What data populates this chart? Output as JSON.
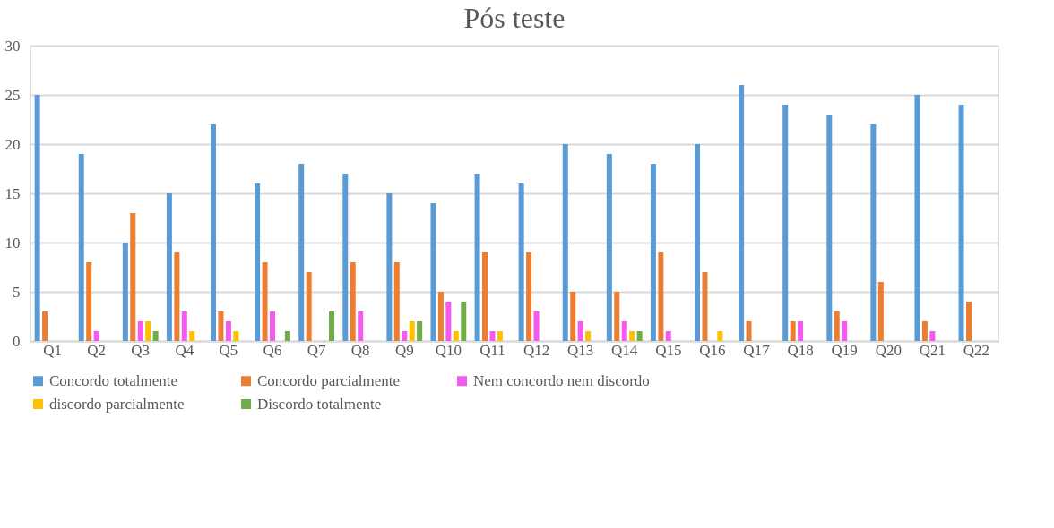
{
  "chart_data": {
    "type": "bar",
    "title": "Pós teste",
    "categories": [
      "Q1",
      "Q2",
      "Q3",
      "Q4",
      "Q5",
      "Q6",
      "Q7",
      "Q8",
      "Q9",
      "Q10",
      "Q11",
      "Q12",
      "Q13",
      "Q14",
      "Q15",
      "Q16",
      "Q17",
      "Q18",
      "Q19",
      "Q20",
      "Q21",
      "Q22"
    ],
    "series": [
      {
        "name": "Concordo totalmente",
        "color": "#5b9bd5",
        "values": [
          25,
          19,
          10,
          15,
          22,
          16,
          18,
          17,
          15,
          14,
          17,
          16,
          20,
          19,
          18,
          20,
          26,
          24,
          23,
          22,
          25,
          24
        ]
      },
      {
        "name": "Concordo parcialmente",
        "color": "#ed7d31",
        "values": [
          3,
          8,
          13,
          9,
          3,
          8,
          7,
          8,
          8,
          5,
          9,
          9,
          5,
          5,
          9,
          7,
          2,
          2,
          3,
          6,
          2,
          4
        ]
      },
      {
        "name": "Nem concordo nem discordo",
        "color": "#f658f0",
        "values": [
          0,
          1,
          2,
          3,
          2,
          3,
          0,
          3,
          1,
          4,
          1,
          3,
          2,
          2,
          1,
          0,
          0,
          2,
          2,
          0,
          1,
          0
        ]
      },
      {
        "name": "discordo parcialmente",
        "color": "#ffc000",
        "values": [
          0,
          0,
          2,
          1,
          1,
          0,
          0,
          0,
          2,
          1,
          1,
          0,
          1,
          1,
          0,
          1,
          0,
          0,
          0,
          0,
          0,
          0
        ]
      },
      {
        "name": "Discordo totalmente",
        "color": "#70ad47",
        "values": [
          0,
          0,
          1,
          0,
          0,
          1,
          3,
          0,
          2,
          4,
          0,
          0,
          0,
          1,
          0,
          0,
          0,
          0,
          0,
          0,
          0,
          0
        ]
      }
    ],
    "ylim": [
      0,
      30
    ],
    "yticks": [
      0,
      5,
      10,
      15,
      20,
      25,
      30
    ],
    "grid": "y",
    "legend": "bottom"
  }
}
